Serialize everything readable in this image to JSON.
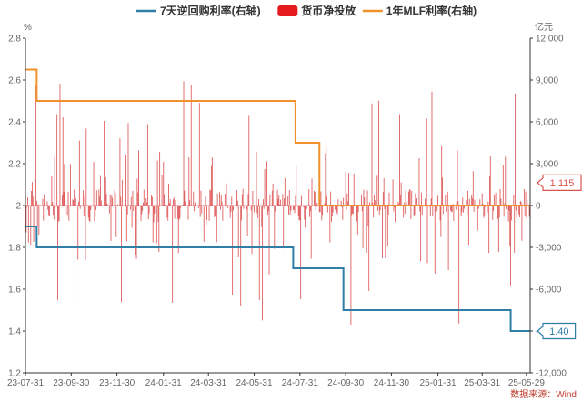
{
  "chart_data": {
    "type": "bar+line",
    "title": "",
    "legend": [
      {
        "label": "7天逆回购利率(右轴)",
        "color": "#2e7ea6",
        "shape": "line"
      },
      {
        "label": "货币净投放",
        "color": "#e41a1c",
        "shape": "box"
      },
      {
        "label": "1年MLF利率(右轴)",
        "color": "#f0912c",
        "shape": "line"
      }
    ],
    "legend_position": "top-center",
    "left_axis": {
      "unit": "%",
      "min": 1.2,
      "max": 2.8,
      "ticks": [
        "1.2",
        "1.4",
        "1.6",
        "1.8",
        "2",
        "2.2",
        "2.4",
        "2.6",
        "2.8"
      ]
    },
    "right_axis": {
      "unit": "亿元",
      "min": -12000,
      "max": 12000,
      "ticks": [
        "-12,000",
        "-9,000",
        "-6,000",
        "-3,000",
        "0",
        "3,000",
        "6,000",
        "9,000",
        "12,000"
      ]
    },
    "x_axis": {
      "start": "2023-07-31",
      "end": "2025-06-03",
      "tick_labels": [
        "23-07-31",
        "23-09-30",
        "23-11-30",
        "24-01-31",
        "24-03-31",
        "24-05-31",
        "24-07-31",
        "24-09-30",
        "24-11-30",
        "25-01-31",
        "25-03-31",
        "25-05-29"
      ],
      "tick_dates": [
        "2023-07-31",
        "2023-09-30",
        "2023-11-30",
        "2024-01-31",
        "2024-03-31",
        "2024-05-31",
        "2024-07-31",
        "2024-09-30",
        "2024-11-30",
        "2025-01-31",
        "2025-03-31",
        "2025-05-29"
      ]
    },
    "series": [
      {
        "name": "7天逆回购利率(右轴)",
        "axis": "left",
        "step": true,
        "points": [
          [
            "2023-07-31",
            1.9
          ],
          [
            "2023-08-15",
            1.8
          ],
          [
            "2024-07-22",
            1.7
          ],
          [
            "2024-09-27",
            1.5
          ],
          [
            "2025-05-08",
            1.4
          ],
          [
            "2025-06-03",
            1.4
          ]
        ],
        "last_label": "1.40"
      },
      {
        "name": "1年MLF利率(右轴)",
        "axis": "left",
        "step": true,
        "points": [
          [
            "2023-07-31",
            2.65
          ],
          [
            "2023-08-15",
            2.5
          ],
          [
            "2024-07-25",
            2.3
          ],
          [
            "2024-08-26",
            2.0
          ],
          [
            "2025-06-03",
            2.0
          ]
        ]
      },
      {
        "name": "货币净投放",
        "axis": "right",
        "last_label": "1,115"
      }
    ],
    "grid": false,
    "source_note": "数据来源：Wind"
  }
}
